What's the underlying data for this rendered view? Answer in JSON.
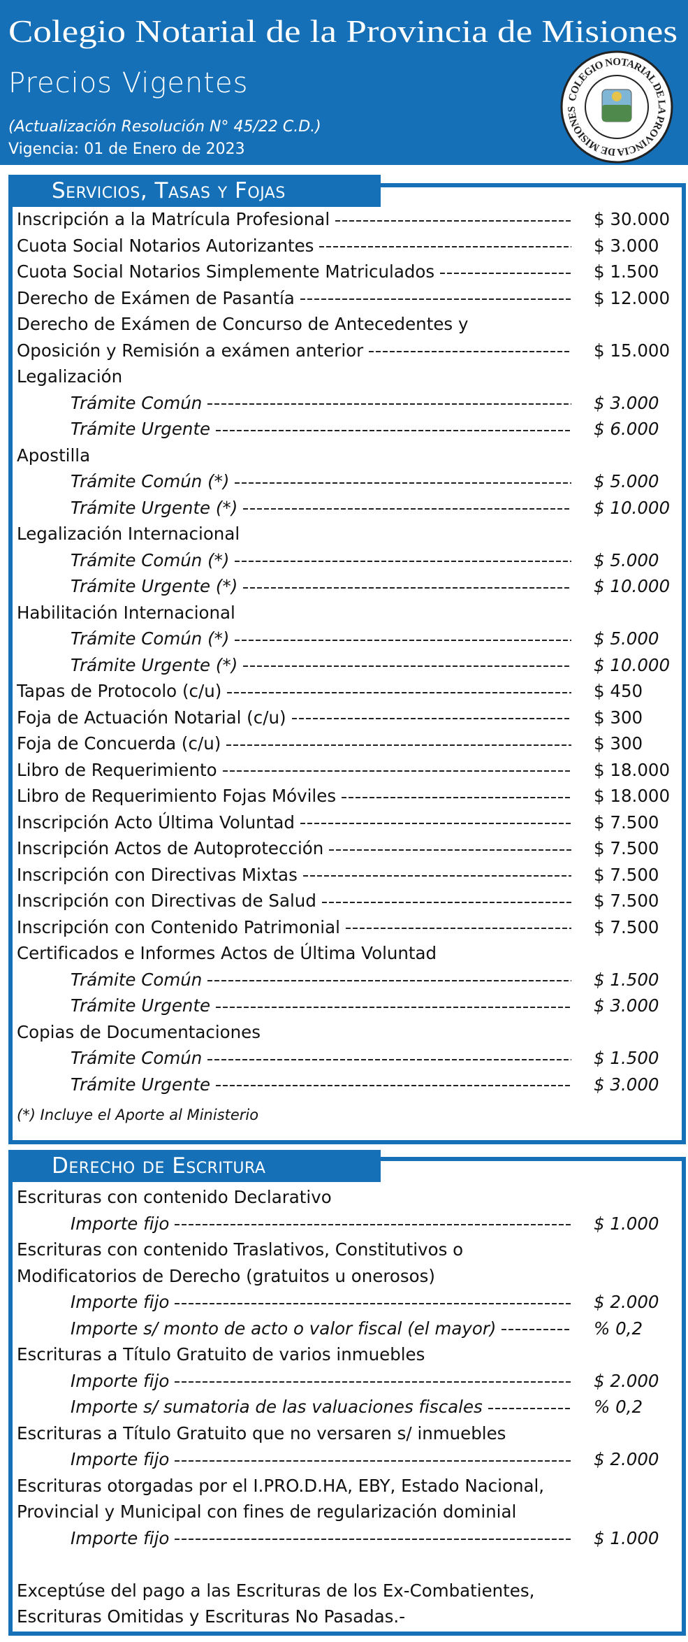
{
  "header": {
    "title": "Colegio Notarial de la Provincia de Misiones",
    "subtitle": "Precios Vigentes",
    "resolution": "(Actualización Resolución N° 45/22 C.D.)",
    "validity": "Vigencia: 01 de Enero de 2023",
    "seal_text": "COLEGIO NOTARIAL DE LA PROVINCIA DE MISIONES"
  },
  "sections": [
    {
      "title": "Servicios, Tasas y Fojas",
      "items": [
        {
          "label": "Inscripción a la Matrícula Profesional",
          "price": "$ 30.000"
        },
        {
          "label": "Cuota Social Notarios Autorizantes",
          "price": "$ 3.000"
        },
        {
          "label": "Cuota Social Notarios Simplemente Matriculados",
          "price": "$ 1.500"
        },
        {
          "label": "Derecho de Exámen de Pasantía",
          "price": "$ 12.000"
        },
        {
          "label": [
            "Derecho de Exámen de Concurso de Antecedentes y",
            "Oposición y Remisión a exámen anterior"
          ],
          "price": "$ 15.000"
        },
        {
          "label": "Legalización",
          "subitems": [
            {
              "label": "Trámite Común",
              "price": "$ 3.000"
            },
            {
              "label": "Trámite Urgente",
              "price": "$ 6.000"
            }
          ]
        },
        {
          "label": "Apostilla",
          "subitems": [
            {
              "label": "Trámite Común (*)",
              "price": "$ 5.000"
            },
            {
              "label": "Trámite Urgente (*)",
              "price": "$ 10.000"
            }
          ]
        },
        {
          "label": "Legalización Internacional",
          "subitems": [
            {
              "label": "Trámite Común (*)",
              "price": "$ 5.000"
            },
            {
              "label": "Trámite Urgente (*)",
              "price": "$ 10.000"
            }
          ]
        },
        {
          "label": "Habilitación Internacional",
          "subitems": [
            {
              "label": "Trámite Común (*)",
              "price": "$ 5.000"
            },
            {
              "label": "Trámite Urgente (*)",
              "price": "$ 10.000"
            }
          ]
        },
        {
          "label": "Tapas de Protocolo (c/u)",
          "price": "$ 450"
        },
        {
          "label": "Foja de Actuación Notarial (c/u)",
          "price": "$ 300"
        },
        {
          "label": "Foja de Concuerda (c/u)",
          "price": "$ 300"
        },
        {
          "label": "Libro de Requerimiento",
          "price": "$ 18.000"
        },
        {
          "label": "Libro de Requerimiento Fojas Móviles",
          "price": "$ 18.000"
        },
        {
          "label": "Inscripción Acto Última Voluntad",
          "price": "$ 7.500"
        },
        {
          "label": "Inscripción Actos de Autoprotección",
          "price": "$ 7.500"
        },
        {
          "label": "Inscripción con Directivas Mixtas",
          "price": "$ 7.500"
        },
        {
          "label": "Inscripción con Directivas de Salud",
          "price": "$ 7.500"
        },
        {
          "label": "Inscripción con Contenido Patrimonial",
          "price": "$ 7.500"
        },
        {
          "label": "Certificados e Informes Actos de Última Voluntad",
          "subitems": [
            {
              "label": "Trámite Común",
              "price": "$ 1.500"
            },
            {
              "label": "Trámite Urgente",
              "price": "$ 3.000"
            }
          ]
        },
        {
          "label": "Copias de Documentaciones",
          "subitems": [
            {
              "label": "Trámite Común",
              "price": "$ 1.500"
            },
            {
              "label": "Trámite Urgente",
              "price": "$ 3.000"
            }
          ]
        }
      ],
      "note": [
        "(*) Incluye el Aporte al Ministerio"
      ]
    },
    {
      "title": "Derecho de Escritura",
      "items": [
        {
          "label": "Escrituras con contenido Declarativo",
          "subitems": [
            {
              "label": "Importe fijo",
              "price": "$ 1.000"
            }
          ]
        },
        {
          "label": [
            "Escrituras con contenido Traslativos, Constitutivos o",
            "Modificatorios de Derecho (gratuitos u onerosos)"
          ],
          "subitems": [
            {
              "label": "Importe fijo",
              "price": "$ 2.000"
            },
            {
              "label": "Importe s/ monto de acto o valor fiscal (el mayor)",
              "price": "% 0,2"
            }
          ]
        },
        {
          "label": "Escrituras a Título Gratuito de varios inmuebles",
          "subitems": [
            {
              "label": "Importe fijo",
              "price": "$ 2.000"
            },
            {
              "label": "Importe s/ sumatoria de las valuaciones fiscales",
              "price": "% 0,2"
            }
          ]
        },
        {
          "label": "Escrituras a Título Gratuito que no versaren s/ inmuebles",
          "subitems": [
            {
              "label": "Importe fijo",
              "price": "$ 2.000"
            }
          ]
        },
        {
          "label": [
            "Escrituras otorgadas por el I.PRO.D.HA, EBY, Estado Nacional,",
            "Provincial y Municipal con fines de regularización dominial"
          ],
          "subitems": [
            {
              "label": "Importe fijo",
              "price": "$ 1.000"
            }
          ]
        }
      ],
      "note": [
        "Exceptúse del pago a las Escrituras de los Ex-Combatientes,",
        "Escrituras Omitidas y Escrituras No Pasadas.-"
      ]
    }
  ]
}
